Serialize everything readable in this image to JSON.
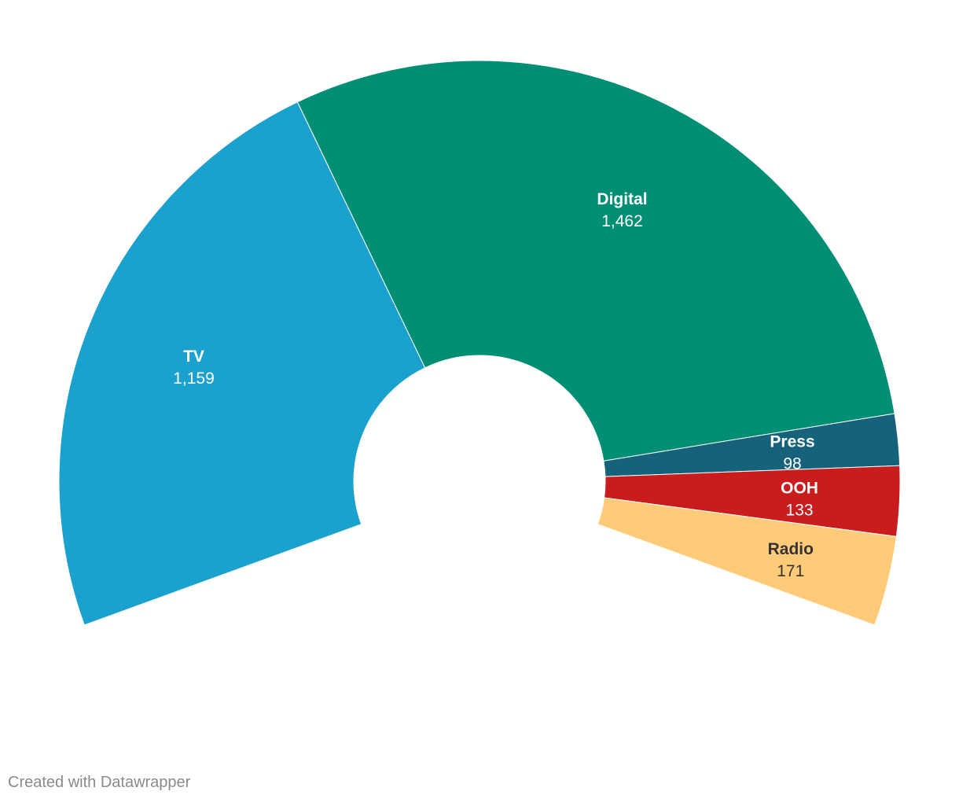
{
  "chart_data": {
    "type": "pie",
    "variant": "semi-donut",
    "arc_span_degrees": 220,
    "arc_start_direction": "lower-left",
    "arc_end_direction": "lower-right",
    "slices": [
      {
        "name": "TV",
        "value": 1159,
        "value_label": "1,159",
        "color": "#1aa1ce",
        "label_color": "#ffffff"
      },
      {
        "name": "Digital",
        "value": 1462,
        "value_label": "1,462",
        "color": "#008f74",
        "label_color": "#ffffff"
      },
      {
        "name": "Press",
        "value": 98,
        "value_label": "98",
        "color": "#16627a",
        "label_color": "#ffffff"
      },
      {
        "name": "OOH",
        "value": 133,
        "value_label": "133",
        "color": "#c91c1c",
        "label_color": "#ffffff"
      },
      {
        "name": "Radio",
        "value": 171,
        "value_label": "171",
        "color": "#ffcb78",
        "label_color": "#333333"
      }
    ]
  },
  "footer": {
    "credit": "Created with Datawrapper"
  }
}
